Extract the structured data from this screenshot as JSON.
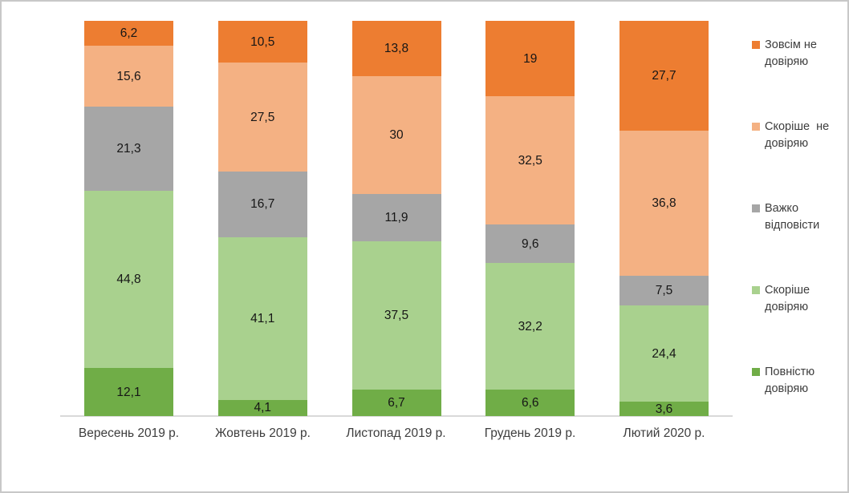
{
  "chart_data": {
    "type": "bar",
    "stacked": true,
    "unit": "%",
    "title": "",
    "xlabel": "",
    "ylabel": "",
    "ylim": [
      0,
      100
    ],
    "grid": false,
    "legend_position": "right",
    "axis_line_color": "#d9d9d9",
    "categories": [
      "Вересень 2019 р.",
      "Жовтень 2019 р.",
      "Листопад 2019 р.",
      "Грудень 2019 р.",
      "Лютий 2020 р."
    ],
    "series": [
      {
        "name": "Повністю довіряю",
        "color": "#70AD47",
        "values": [
          12.1,
          4.1,
          6.7,
          6.6,
          3.6
        ],
        "labels": [
          "12,1",
          "4,1",
          "6,7",
          "6,6",
          "3,6"
        ]
      },
      {
        "name": "Скоріше довіряю",
        "color": "#A9D18E",
        "values": [
          44.8,
          41.1,
          37.5,
          32.2,
          24.4
        ],
        "labels": [
          "44,8",
          "41,1",
          "37,5",
          "32,2",
          "24,4"
        ]
      },
      {
        "name": "Важко відповісти",
        "color": "#A6A6A6",
        "values": [
          21.3,
          16.7,
          11.9,
          9.6,
          7.5
        ],
        "labels": [
          "21,3",
          "16,7",
          "11,9",
          "9,6",
          "7,5"
        ]
      },
      {
        "name": "Скоріше не довіряю",
        "color": "#F4B183",
        "values": [
          15.6,
          27.5,
          30,
          32.5,
          36.8
        ],
        "labels": [
          "15,6",
          "27,5",
          "30",
          "32,5",
          "36,8"
        ]
      },
      {
        "name": "Зовсім не довіряю",
        "color": "#ED7D31",
        "values": [
          6.2,
          10.5,
          13.8,
          19,
          27.7
        ],
        "labels": [
          "6,2",
          "10,5",
          "13,8",
          "19",
          "27,7"
        ]
      }
    ],
    "legend_items": [
      {
        "label": "Зовсім не довіряю",
        "lines": "Зовсім не\nдовіряю",
        "color": "#ED7D31"
      },
      {
        "label": "Скоріше не довіряю",
        "lines": "Скоріше  не\nдовіряю",
        "color": "#F4B183"
      },
      {
        "label": "Важко відповісти",
        "lines": "Важко\nвідповісти",
        "color": "#A6A6A6"
      },
      {
        "label": "Скоріше довіряю",
        "lines": "Скоріше\nдовіряю",
        "color": "#A9D18E"
      },
      {
        "label": "Повністю довіряю",
        "lines": "Повністю\nдовіряю",
        "color": "#70AD47"
      }
    ]
  }
}
